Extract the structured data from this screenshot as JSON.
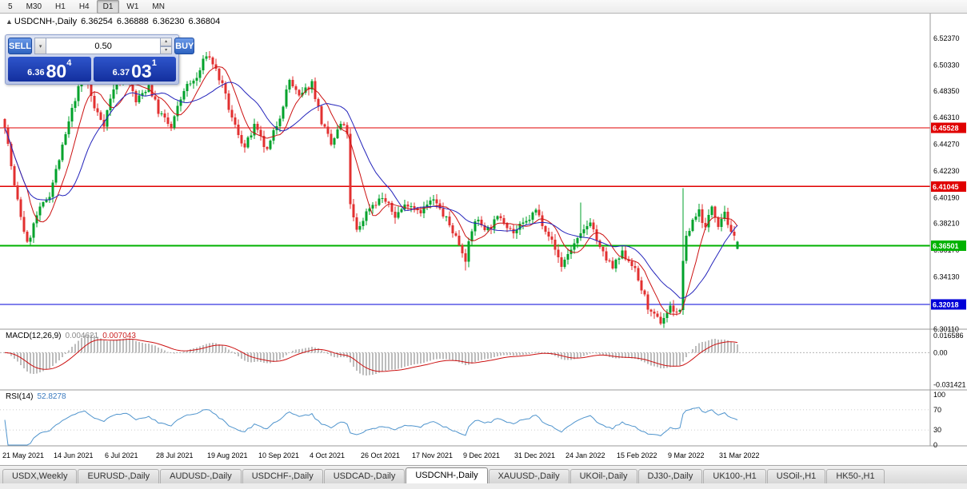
{
  "toolbar": {
    "timeframes": [
      "5",
      "M30",
      "H1",
      "H4",
      "D1",
      "W1",
      "MN"
    ],
    "active": "D1"
  },
  "chart_header": {
    "symbol": "USDCNH-,Daily",
    "open": "6.36254",
    "high": "6.36888",
    "low": "6.36230",
    "close": "6.36804"
  },
  "trade_panel": {
    "sell_label": "SELL",
    "buy_label": "BUY",
    "volume": "0.50",
    "sell_price": {
      "prefix": "6.36",
      "big": "80",
      "sup": "4"
    },
    "buy_price": {
      "prefix": "6.37",
      "big": "03",
      "sup": "1"
    }
  },
  "chart_data": {
    "type": "candlestick",
    "title": "USDCNH-,Daily",
    "candle_count": 230,
    "date_step": 16,
    "price_range": {
      "top": 6.5421,
      "bottom": 6.3012
    },
    "last_candle": {
      "open": 6.36254,
      "high": 6.36888,
      "low": 6.3623,
      "close": 6.36804
    },
    "price_axis_ticks": [
      {
        "value": 6.5237,
        "label": "6.52370"
      },
      {
        "value": 6.5033,
        "label": "6.50330"
      },
      {
        "value": 6.4835,
        "label": "6.48350"
      },
      {
        "value": 6.4631,
        "label": "6.46310"
      },
      {
        "value": 6.4427,
        "label": "6.44270"
      },
      {
        "value": 6.4223,
        "label": "6.42230"
      },
      {
        "value": 6.4019,
        "label": "6.40190"
      },
      {
        "value": 6.3821,
        "label": "6.38210"
      },
      {
        "value": 6.3617,
        "label": "6.36170"
      },
      {
        "value": 6.3413,
        "label": "6.34130"
      },
      {
        "value": 6.3011,
        "label": "6.30110"
      }
    ],
    "levels": [
      {
        "value": 6.45528,
        "label": "6.45528",
        "color": "#e00000",
        "thick": false
      },
      {
        "value": 6.41045,
        "label": "6.41045",
        "color": "#e00000",
        "thick": false
      },
      {
        "value": 6.36501,
        "label": "6.36501",
        "color": "#00b200",
        "thick": true
      },
      {
        "value": 6.32018,
        "label": "6.32018",
        "color": "#0000d8",
        "thick": false
      }
    ],
    "x_axis_dates": [
      "21 May 2021",
      "14 Jun 2021",
      "6 Jul 2021",
      "28 Jul 2021",
      "19 Aug 2021",
      "10 Sep 2021",
      "4 Oct 2021",
      "26 Oct 2021",
      "17 Nov 2021",
      "9 Dec 2021",
      "31 Dec 2021",
      "24 Jan 2022",
      "15 Feb 2022",
      "9 Mar 2022",
      "31 Mar 2022"
    ],
    "trend_waypoints": [
      [
        0,
        6.458
      ],
      [
        3,
        6.41
      ],
      [
        7,
        6.366
      ],
      [
        10,
        6.388
      ],
      [
        14,
        6.405
      ],
      [
        18,
        6.44
      ],
      [
        22,
        6.478
      ],
      [
        25,
        6.498
      ],
      [
        28,
        6.47
      ],
      [
        31,
        6.459
      ],
      [
        34,
        6.486
      ],
      [
        38,
        6.498
      ],
      [
        41,
        6.475
      ],
      [
        45,
        6.488
      ],
      [
        48,
        6.468
      ],
      [
        52,
        6.455
      ],
      [
        56,
        6.485
      ],
      [
        60,
        6.493
      ],
      [
        63,
        6.512
      ],
      [
        65,
        6.505
      ],
      [
        68,
        6.487
      ],
      [
        71,
        6.462
      ],
      [
        75,
        6.44
      ],
      [
        78,
        6.456
      ],
      [
        82,
        6.437
      ],
      [
        86,
        6.465
      ],
      [
        89,
        6.492
      ],
      [
        92,
        6.478
      ],
      [
        96,
        6.49
      ],
      [
        99,
        6.46
      ],
      [
        102,
        6.442
      ],
      [
        105,
        6.458
      ],
      [
        107,
        6.452
      ],
      [
        108,
        6.395
      ],
      [
        110,
        6.376
      ],
      [
        114,
        6.395
      ],
      [
        118,
        6.402
      ],
      [
        122,
        6.388
      ],
      [
        126,
        6.398
      ],
      [
        130,
        6.392
      ],
      [
        134,
        6.4
      ],
      [
        138,
        6.385
      ],
      [
        141,
        6.372
      ],
      [
        144,
        6.356
      ],
      [
        147,
        6.385
      ],
      [
        151,
        6.378
      ],
      [
        155,
        6.388
      ],
      [
        159,
        6.375
      ],
      [
        163,
        6.383
      ],
      [
        166,
        6.392
      ],
      [
        170,
        6.374
      ],
      [
        174,
        6.35
      ],
      [
        177,
        6.363
      ],
      [
        180,
        6.372
      ],
      [
        183,
        6.385
      ],
      [
        186,
        6.362
      ],
      [
        190,
        6.348
      ],
      [
        193,
        6.359
      ],
      [
        196,
        6.352
      ],
      [
        199,
        6.332
      ],
      [
        202,
        6.312
      ],
      [
        205,
        6.307
      ],
      [
        208,
        6.318
      ],
      [
        211,
        6.314
      ],
      [
        212,
        6.355
      ],
      [
        213,
        6.37
      ],
      [
        215,
        6.385
      ],
      [
        217,
        6.392
      ],
      [
        219,
        6.378
      ],
      [
        221,
        6.396
      ],
      [
        223,
        6.382
      ],
      [
        225,
        6.392
      ],
      [
        227,
        6.373
      ],
      [
        229,
        6.368
      ]
    ],
    "spikes": [
      {
        "index": 212,
        "high": 6.409
      },
      {
        "index": 180,
        "high": 6.398
      },
      {
        "index": 144,
        "low": 6.346
      }
    ],
    "colors": {
      "up": "#00a22b",
      "down": "#e23030",
      "ma_fast": "#cc1111",
      "ma_slow": "#2424bb",
      "macd_hist": "#bdbdbd",
      "macd_signal": "#cc1111",
      "rsi": "#4f94cd",
      "axis_line": "#9a9a9a"
    },
    "indicators": {
      "macd": {
        "label": "MACD(12,26,9)",
        "values": [
          "0.004621",
          "0.007043"
        ],
        "axis": [
          {
            "value": 0.016586,
            "label": "0.016586"
          },
          {
            "value": 0,
            "label": "0.00"
          },
          {
            "value": -0.031421,
            "label": "-0.031421"
          }
        ]
      },
      "rsi": {
        "label": "RSI(14)",
        "value": "52.8278",
        "axis": [
          {
            "value": 100,
            "label": "100"
          },
          {
            "value": 70,
            "label": "70"
          },
          {
            "value": 30,
            "label": "30"
          },
          {
            "value": 0,
            "label": "0"
          }
        ],
        "dotted_levels": [
          70,
          30
        ]
      }
    }
  },
  "tabs": [
    "USDX,Weekly",
    "EURUSD-,Daily",
    "AUDUSD-,Daily",
    "USDCHF-,Daily",
    "USDCAD-,Daily",
    "USDCNH-,Daily",
    "XAUUSD-,Daily",
    "UKOil-,Daily",
    "DJ30-,Daily",
    "UK100-,H1",
    "USOil-,H1",
    "HK50-,H1"
  ],
  "active_tab": "USDCNH-,Daily"
}
